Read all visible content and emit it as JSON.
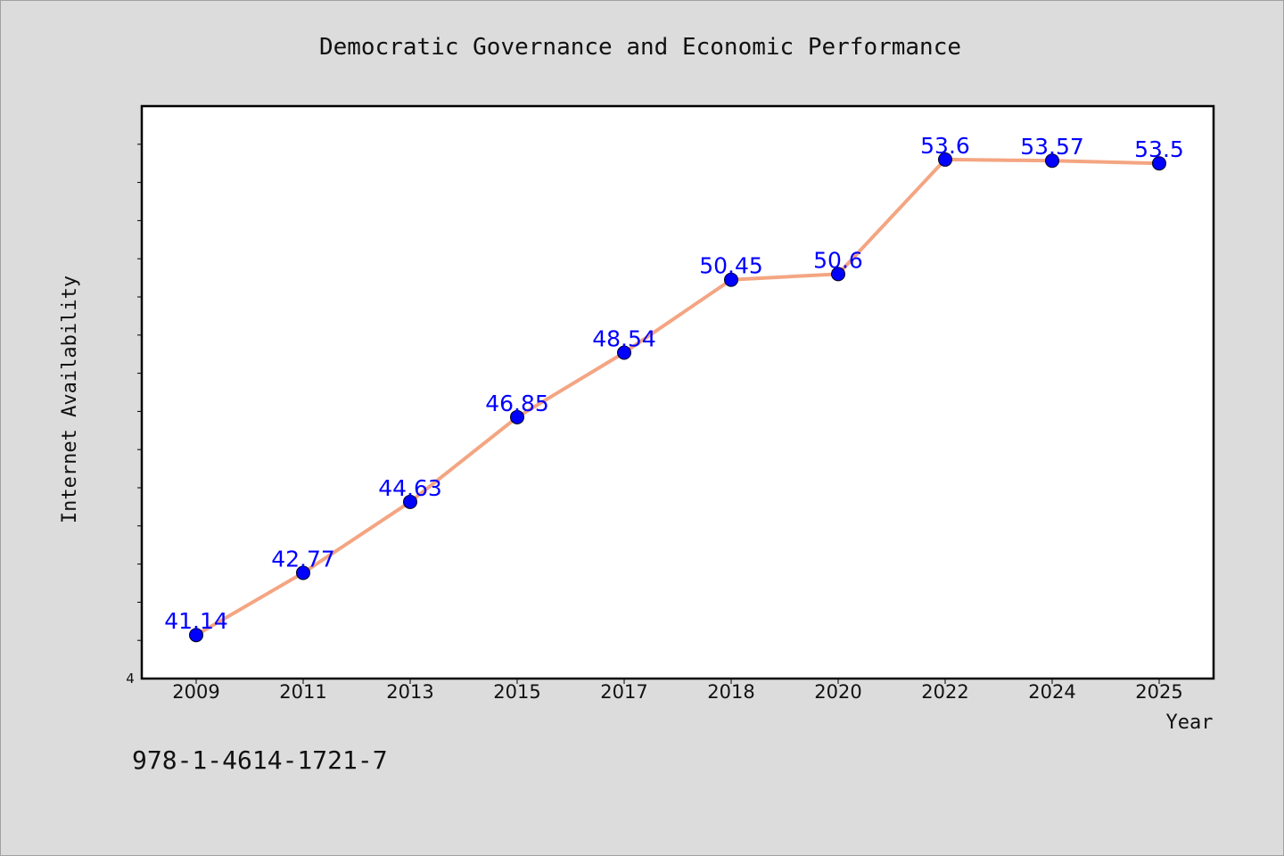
{
  "chart_data": {
    "type": "line",
    "title": "Democratic Governance and Economic Performance",
    "xlabel": "Year",
    "ylabel": "Internet Availability",
    "categories": [
      "2009",
      "2011",
      "2013",
      "2015",
      "2017",
      "2018",
      "2020",
      "2022",
      "2024",
      "2025"
    ],
    "series": [
      {
        "values": [
          41.14,
          42.77,
          44.63,
          46.85,
          48.54,
          50.45,
          50.6,
          53.6,
          53.57,
          53.5
        ],
        "labels": [
          "41.14",
          "42.77",
          "44.63",
          "46.85",
          "48.54",
          "50.45",
          "50.6",
          "53.6",
          "53.57",
          "53.5"
        ],
        "line_color": "#f4a582",
        "marker_color": "#0000ff"
      }
    ],
    "ylim": [
      40,
      55
    ],
    "y_tick_values": [
      41,
      42,
      43,
      44,
      45,
      46,
      47,
      48,
      49,
      50,
      51,
      52,
      53,
      54
    ],
    "y_tick_shown_label": "4",
    "grid": false,
    "legend": "none"
  },
  "footer_text": "978-1-4614-1721-7"
}
